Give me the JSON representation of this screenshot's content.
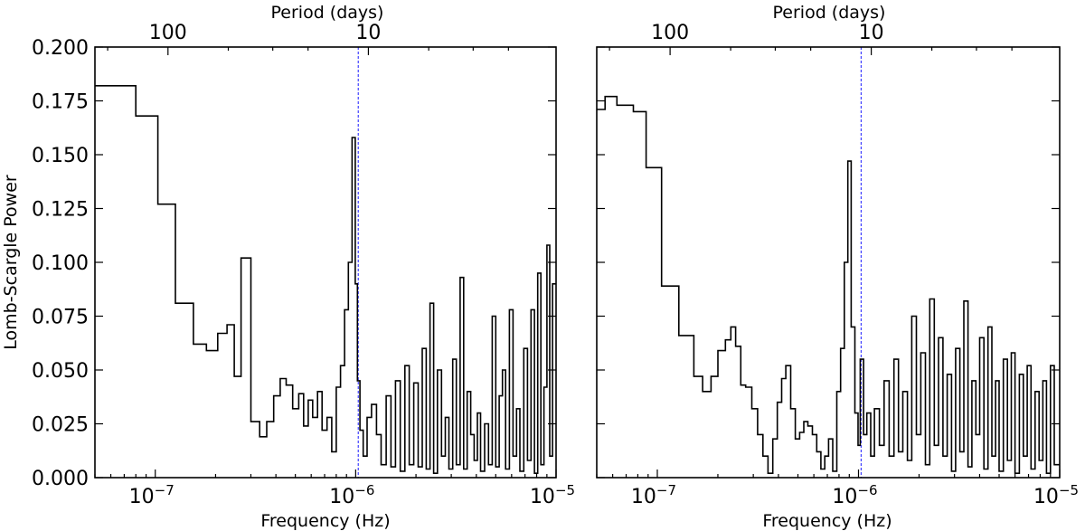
{
  "chart_data": [
    {
      "type": "line",
      "step": true,
      "xscale": "log",
      "xlim": [
        5e-08,
        1e-05
      ],
      "ylim": [
        0,
        0.2
      ],
      "xlabel": "Frequency (Hz)",
      "ylabel": "Lomb-Scargle Power",
      "secondary_xlabel": "Period (days)",
      "secondary_x_ticks": [
        {
          "label": "100",
          "period_days": 100
        },
        {
          "label": "10",
          "period_days": 10
        }
      ],
      "x_ticks": [
        {
          "label": "10",
          "exp": "−7",
          "value": 1e-07
        },
        {
          "label": "10",
          "exp": "−6",
          "value": 1e-06
        },
        {
          "label": "10",
          "exp": "−5",
          "value": 1e-05
        }
      ],
      "y_ticks": [
        "0.000",
        "0.025",
        "0.050",
        "0.075",
        "0.100",
        "0.125",
        "0.150",
        "0.175",
        "0.200"
      ],
      "y_tick_values": [
        0,
        0.025,
        0.05,
        0.075,
        0.1,
        0.125,
        0.15,
        0.175,
        0.2
      ],
      "marker_frequency": 1.03e-06,
      "marker_color": "#1a1aff",
      "line_color": "#000000",
      "series": [
        {
          "x": [
            5e-08,
            8e-08,
            1.03e-07,
            1.26e-07,
            1.55e-07,
            1.8e-07,
            2.05e-07,
            2.28e-07,
            2.48e-07,
            2.68e-07,
            3e-07,
            3.32e-07,
            3.6e-07,
            3.9e-07,
            4.2e-07,
            4.5e-07,
            4.85e-07,
            5.2e-07,
            5.5e-07,
            5.8e-07,
            6.1e-07,
            6.45e-07,
            6.8e-07,
            7.2e-07,
            7.6e-07,
            8e-07,
            8.4e-07,
            8.8e-07,
            9.2e-07,
            9.6e-07,
            9.95e-07,
            1.02e-06,
            1.05e-06,
            1.09e-06,
            1.14e-06,
            1.2e-06,
            1.27e-06,
            1.34e-06,
            1.42e-06,
            1.5e-06,
            1.58e-06,
            1.67e-06,
            1.76e-06,
            1.85e-06,
            1.95e-06,
            2.05e-06,
            2.15e-06,
            2.25e-06,
            2.35e-06,
            2.45e-06,
            2.56e-06,
            2.68e-06,
            2.8e-06,
            2.92e-06,
            3.05e-06,
            3.18e-06,
            3.32e-06,
            3.46e-06,
            3.6e-06,
            3.75e-06,
            3.9e-06,
            4.05e-06,
            4.2e-06,
            4.4e-06,
            4.6e-06,
            4.8e-06,
            5e-06,
            5.2e-06,
            5.4e-06,
            5.6e-06,
            5.85e-06,
            6.1e-06,
            6.35e-06,
            6.6e-06,
            6.9e-06,
            7.2e-06,
            7.5e-06,
            7.8e-06,
            8.1e-06,
            8.4e-06,
            8.7e-06,
            9e-06,
            9.3e-06,
            9.6e-06
          ],
          "y": [
            0.182,
            0.168,
            0.127,
            0.081,
            0.062,
            0.059,
            0.067,
            0.071,
            0.047,
            0.102,
            0.026,
            0.019,
            0.026,
            0.038,
            0.046,
            0.043,
            0.032,
            0.039,
            0.024,
            0.036,
            0.028,
            0.04,
            0.022,
            0.028,
            0.012,
            0.042,
            0.052,
            0.078,
            0.1,
            0.158,
            0.09,
            0.045,
            0.022,
            0.01,
            0.028,
            0.034,
            0.02,
            0.006,
            0.038,
            0.005,
            0.045,
            0.003,
            0.052,
            0.006,
            0.044,
            0.005,
            0.06,
            0.004,
            0.081,
            0.002,
            0.05,
            0.01,
            0.028,
            0.004,
            0.055,
            0.006,
            0.093,
            0.004,
            0.04,
            0.02,
            0.008,
            0.03,
            0.003,
            0.025,
            0.006,
            0.075,
            0.005,
            0.038,
            0.05,
            0.004,
            0.078,
            0.01,
            0.032,
            0.003,
            0.06,
            0.008,
            0.078,
            0.002,
            0.095,
            0.006,
            0.042,
            0.108,
            0.01,
            0.09
          ]
        }
      ]
    },
    {
      "type": "line",
      "step": true,
      "xscale": "log",
      "xlim": [
        5e-08,
        1e-05
      ],
      "ylim": [
        0,
        0.2
      ],
      "xlabel": "Frequency (Hz)",
      "secondary_xlabel": "Period (days)",
      "secondary_x_ticks": [
        {
          "label": "100",
          "period_days": 100
        },
        {
          "label": "10",
          "period_days": 10
        }
      ],
      "x_ticks": [
        {
          "label": "10",
          "exp": "−7",
          "value": 1e-07
        },
        {
          "label": "10",
          "exp": "−6",
          "value": 1e-06
        },
        {
          "label": "10",
          "exp": "−5",
          "value": 1e-05
        }
      ],
      "y_tick_values": [
        0,
        0.025,
        0.05,
        0.075,
        0.1,
        0.125,
        0.15,
        0.175,
        0.2
      ],
      "marker_frequency": 1.03e-06,
      "marker_color": "#1a1aff",
      "line_color": "#000000",
      "series": [
        {
          "x": [
            5e-08,
            5.5e-08,
            6.3e-08,
            7.6e-08,
            8.8e-08,
            1.05e-07,
            1.28e-07,
            1.52e-07,
            1.68e-07,
            1.85e-07,
            2e-07,
            2.18e-07,
            2.32e-07,
            2.45e-07,
            2.6e-07,
            2.75e-07,
            2.95e-07,
            3.15e-07,
            3.35e-07,
            3.55e-07,
            3.75e-07,
            3.95e-07,
            4.15e-07,
            4.35e-07,
            4.6e-07,
            4.85e-07,
            5.1e-07,
            5.35e-07,
            5.6e-07,
            5.9e-07,
            6.2e-07,
            6.5e-07,
            6.8e-07,
            7.1e-07,
            7.45e-07,
            7.8e-07,
            8.15e-07,
            8.5e-07,
            8.85e-07,
            9.2e-07,
            9.6e-07,
            9.95e-07,
            1.02e-06,
            1.06e-06,
            1.1e-06,
            1.15e-06,
            1.2e-06,
            1.27e-06,
            1.34e-06,
            1.42e-06,
            1.5e-06,
            1.58e-06,
            1.66e-06,
            1.75e-06,
            1.84e-06,
            1.94e-06,
            2.04e-06,
            2.15e-06,
            2.26e-06,
            2.38e-06,
            2.5e-06,
            2.63e-06,
            2.76e-06,
            2.9e-06,
            3.04e-06,
            3.19e-06,
            3.34e-06,
            3.5e-06,
            3.66e-06,
            3.83e-06,
            4e-06,
            4.2e-06,
            4.4e-06,
            4.6e-06,
            4.8e-06,
            5e-06,
            5.25e-06,
            5.5e-06,
            5.75e-06,
            6e-06,
            6.3e-06,
            6.6e-06,
            6.9e-06,
            7.2e-06,
            7.55e-06,
            7.9e-06,
            8.25e-06,
            8.6e-06,
            9e-06,
            9.4e-06
          ],
          "y": [
            0.171,
            0.177,
            0.173,
            0.17,
            0.144,
            0.089,
            0.066,
            0.047,
            0.04,
            0.047,
            0.059,
            0.064,
            0.07,
            0.061,
            0.043,
            0.042,
            0.032,
            0.02,
            0.01,
            0.002,
            0.018,
            0.035,
            0.046,
            0.052,
            0.032,
            0.018,
            0.021,
            0.026,
            0.024,
            0.02,
            0.012,
            0.004,
            0.01,
            0.018,
            0.003,
            0.04,
            0.06,
            0.1,
            0.147,
            0.07,
            0.03,
            0.015,
            0.055,
            0.02,
            0.03,
            0.01,
            0.032,
            0.015,
            0.045,
            0.01,
            0.055,
            0.012,
            0.04,
            0.008,
            0.075,
            0.02,
            0.058,
            0.006,
            0.083,
            0.015,
            0.065,
            0.01,
            0.048,
            0.003,
            0.06,
            0.012,
            0.082,
            0.005,
            0.045,
            0.02,
            0.065,
            0.004,
            0.07,
            0.01,
            0.045,
            0.003,
            0.055,
            0.008,
            0.058,
            0.002,
            0.048,
            0.01,
            0.052,
            0.004,
            0.04,
            0.008,
            0.045,
            0.002,
            0.052,
            0.006
          ]
        }
      ]
    }
  ]
}
